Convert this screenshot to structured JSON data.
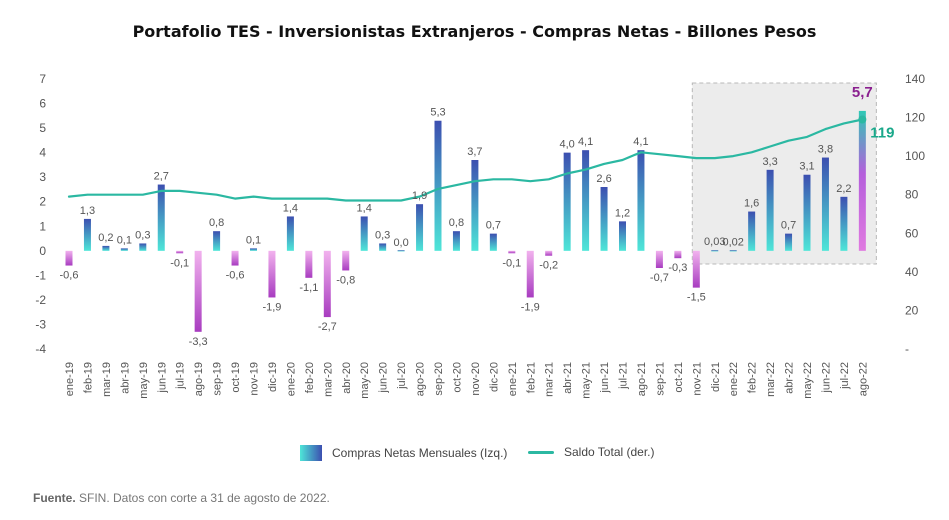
{
  "chart_data": {
    "type": "bar",
    "title": "Portafolio TES - Inversionistas Extranjeros - Compras Netas - Billones Pesos",
    "categories": [
      "ene-19",
      "feb-19",
      "mar-19",
      "abr-19",
      "may-19",
      "jun-19",
      "jul-19",
      "ago-19",
      "sep-19",
      "oct-19",
      "nov-19",
      "dic-19",
      "ene-20",
      "feb-20",
      "mar-20",
      "abr-20",
      "may-20",
      "jun-20",
      "jul-20",
      "ago-20",
      "sep-20",
      "oct-20",
      "nov-20",
      "dic-20",
      "ene-21",
      "feb-21",
      "mar-21",
      "abr-21",
      "may-21",
      "jun-21",
      "jul-21",
      "ago-21",
      "sep-21",
      "oct-21",
      "nov-21",
      "dic-21",
      "ene-22",
      "feb-22",
      "mar-22",
      "abr-22",
      "may-22",
      "jun-22",
      "jul-22",
      "ago-22"
    ],
    "series": [
      {
        "name": "Compras Netas Mensuales (Izq.)",
        "axis": "left",
        "values": [
          -0.6,
          1.3,
          0.2,
          0.1,
          0.3,
          2.7,
          -0.1,
          -3.3,
          0.8,
          -0.6,
          0.1,
          -1.9,
          1.4,
          -1.1,
          -2.7,
          -0.8,
          1.4,
          0.3,
          0.0,
          1.9,
          5.3,
          0.8,
          3.7,
          0.7,
          -0.1,
          -1.9,
          -0.2,
          4.0,
          4.1,
          2.6,
          1.2,
          4.1,
          -0.7,
          -0.3,
          -1.5,
          0.03,
          0.02,
          1.6,
          3.3,
          0.7,
          3.1,
          3.8,
          2.2,
          5.7
        ],
        "labels": [
          "-0,6",
          "1,3",
          "0,2",
          "0,1",
          "0,3",
          "2,7",
          "-0,1",
          "-3,3",
          "0,8",
          "-0,6",
          "0,1",
          "-1,9",
          "1,4",
          "-1,1",
          "-2,7",
          "-0,8",
          "1,4",
          "0,3",
          "0,0",
          "1,9",
          "5,3",
          "0,8",
          "3,7",
          "0,7",
          "-0,1",
          "-1,9",
          "-0,2",
          "4,0",
          "4,1",
          "2,6",
          "1,2",
          "4,1",
          "-0,7",
          "-0,3",
          "-1,5",
          "0,03",
          "0,02",
          "1,6",
          "3,3",
          "0,7",
          "3,1",
          "3,8",
          "2,2",
          "5,7"
        ]
      },
      {
        "name": "Saldo Total (der.)",
        "axis": "right",
        "type": "line",
        "values": [
          79,
          80,
          80,
          80,
          80,
          82,
          82,
          81,
          80,
          78,
          79,
          78,
          78,
          78,
          78,
          77,
          77,
          77,
          77,
          79,
          83,
          85,
          87,
          88,
          88,
          87,
          88,
          91,
          93,
          96,
          98,
          102,
          101,
          100,
          99,
          99,
          100,
          102,
          105,
          108,
          110,
          114,
          117,
          119
        ],
        "end_label": "119"
      }
    ],
    "ylim_left": [
      -4,
      7
    ],
    "yticks_left": [
      "-4",
      "-3",
      "-2",
      "-1",
      "0",
      "1",
      "2",
      "3",
      "4",
      "5",
      "6",
      "7"
    ],
    "ylim_right": [
      0,
      140
    ],
    "yticks_right": [
      "-",
      "20",
      "40",
      "60",
      "80",
      "100",
      "120",
      "140"
    ],
    "highlight_region": [
      "nov-21",
      "ago-22"
    ],
    "grid": false,
    "legend_position": "bottom",
    "colors": {
      "positive_top": "#3c4fb0",
      "positive_bottom": "#4ee6d8",
      "negative_top": "#f2b2ee",
      "negative_bottom": "#a83cc0",
      "last_bar": "#d25cd9",
      "line": "#2bb8a2",
      "last_label": "#8a1f8f",
      "end_label": "#1aa88a",
      "highlight": "#ececec"
    }
  },
  "legend": {
    "bar_label": "Compras Netas Mensuales (Izq.)",
    "line_label": "Saldo Total (der.)"
  },
  "source": {
    "label": "Fuente.",
    "text": " SFIN. Datos con corte a 31 de agosto de 2022."
  }
}
